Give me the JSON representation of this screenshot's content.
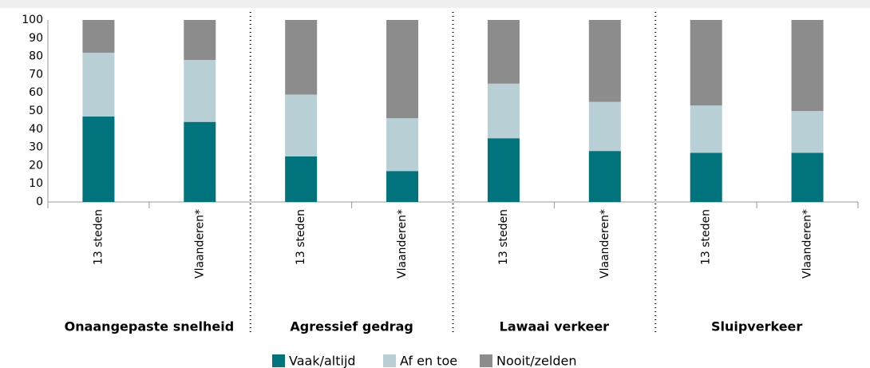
{
  "chart_data": {
    "type": "stacked-bar",
    "categories": [
      "13 steden",
      "Vlaanderen*",
      "13 steden",
      "Vlaanderen*",
      "13 steden",
      "Vlaanderen*",
      "13 steden",
      "Vlaanderen*"
    ],
    "groups": [
      "Onaangepaste snelheid",
      "Agressief gedrag",
      "Lawaai verkeer",
      "Sluipverkeer"
    ],
    "series": [
      {
        "name": "Vaak/altijd",
        "color": "#00737c",
        "values": [
          47,
          44,
          25,
          17,
          35,
          28,
          27,
          27
        ]
      },
      {
        "name": "Af en toe",
        "color": "#b9cfd6",
        "values": [
          35,
          34,
          34,
          29,
          30,
          27,
          26,
          23
        ]
      },
      {
        "name": "Nooit/zelden",
        "color": "#8c8c8c",
        "values": [
          18,
          22,
          41,
          54,
          35,
          45,
          47,
          50
        ]
      }
    ],
    "ylim": [
      0,
      100
    ],
    "yticks": [
      0,
      10,
      20,
      30,
      40,
      50,
      60,
      70,
      80,
      90,
      100
    ],
    "grid": false,
    "legend": "bottom"
  }
}
